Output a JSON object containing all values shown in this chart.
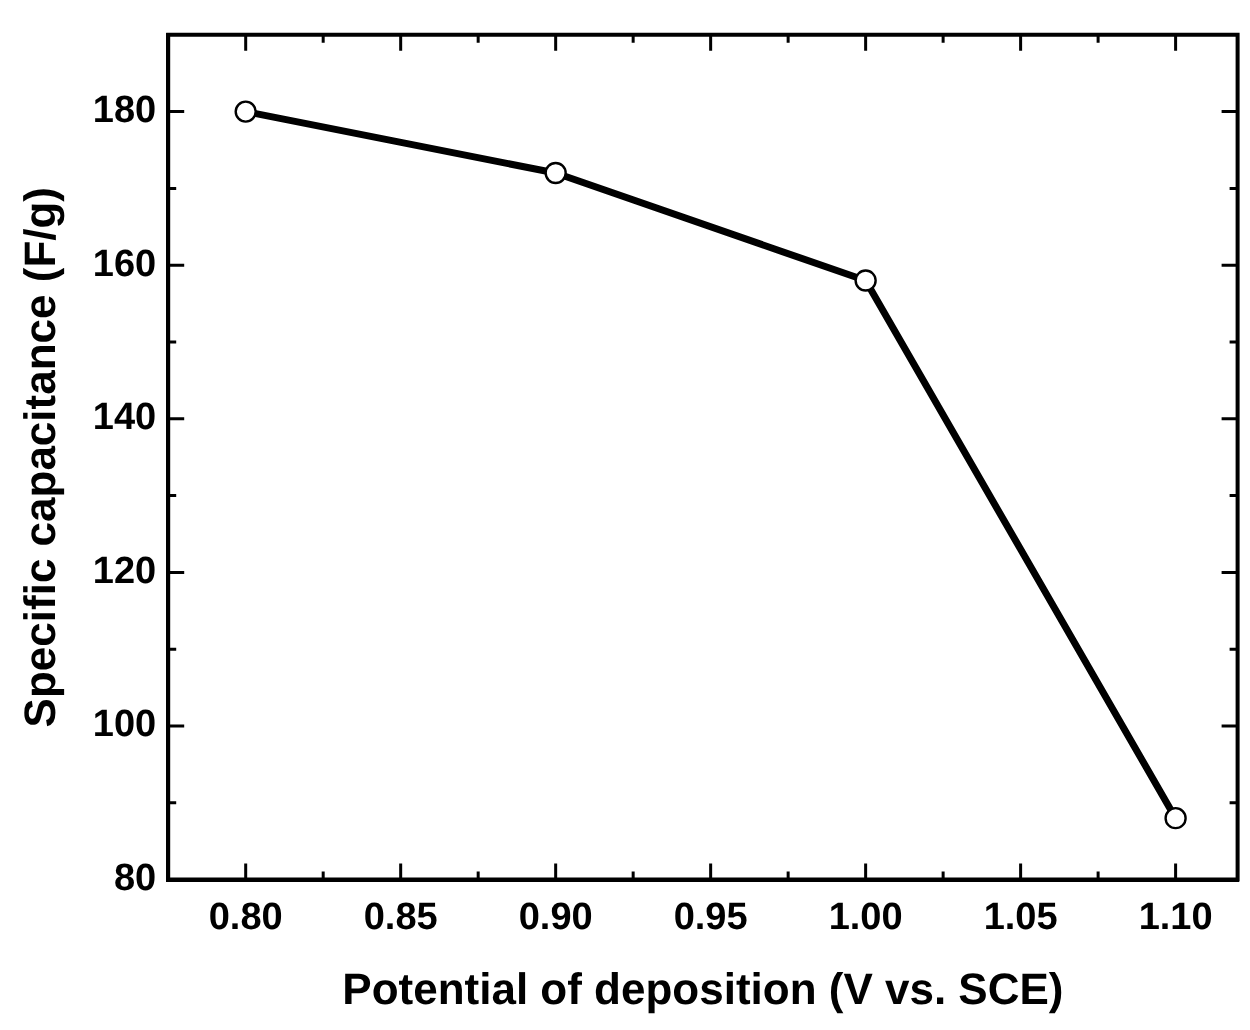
{
  "chart_data": {
    "type": "line",
    "xlabel": "Potential of deposition (V vs. SCE)",
    "ylabel": "Specific capacitance (F/g)",
    "x": [
      0.8,
      0.9,
      1.0,
      1.1
    ],
    "series": [
      {
        "color": "#000000",
        "values": [
          180,
          172,
          158,
          88
        ]
      }
    ],
    "xlim": [
      0.775,
      1.12
    ],
    "xticks": [
      {
        "value": 0.8,
        "label": "0.80"
      },
      {
        "value": 0.825,
        "label": null
      },
      {
        "value": 0.85,
        "label": "0.85"
      },
      {
        "value": 0.875,
        "label": null
      },
      {
        "value": 0.9,
        "label": "0.90"
      },
      {
        "value": 0.925,
        "label": null
      },
      {
        "value": 0.95,
        "label": "0.95"
      },
      {
        "value": 0.975,
        "label": null
      },
      {
        "value": 1.0,
        "label": "1.00"
      },
      {
        "value": 1.025,
        "label": null
      },
      {
        "value": 1.05,
        "label": "1.05"
      },
      {
        "value": 1.075,
        "label": null
      },
      {
        "value": 1.1,
        "label": "1.10"
      }
    ],
    "ylim": [
      80,
      190
    ],
    "yticks": [
      80,
      {
        "value": 90,
        "label": null
      },
      100,
      {
        "value": 110,
        "label": null
      },
      120,
      {
        "value": 130,
        "label": null
      },
      140,
      {
        "value": 150,
        "label": null
      },
      160,
      {
        "value": 170,
        "label": null
      },
      180
    ],
    "marker": "circle",
    "line_style": "solid",
    "grid": false,
    "legend": false
  }
}
